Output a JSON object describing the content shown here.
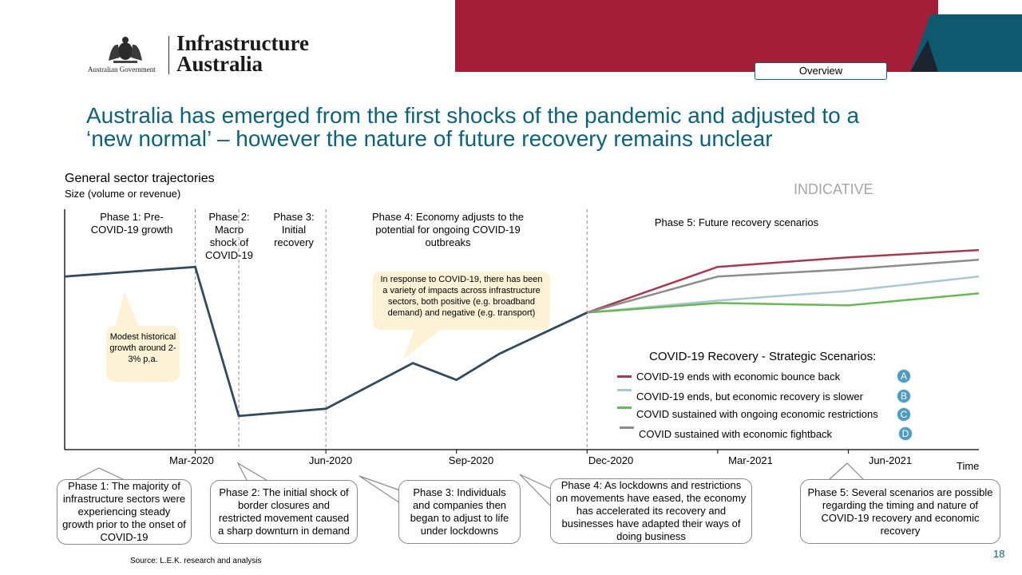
{
  "header": {
    "gov_label": "Australian Government",
    "org_line1": "Infrastructure",
    "org_line2": "Australia",
    "nav_button": "Overview"
  },
  "title_line1": "Australia has emerged from the first shocks of the pandemic and adjusted to a",
  "title_line2": "‘new normal’ – however the nature of future recovery remains unclear",
  "indicative": "INDICATIVE",
  "colors": {
    "accent_red": "#a51e38",
    "accent_teal": "#0e6279",
    "line_dark": "#324a5e"
  },
  "chart_data": {
    "type": "line",
    "title": "General sector trajectories",
    "ylabel": "Size (volume or revenue)",
    "xlabel": "Time",
    "x_ticks": [
      "Mar-2020",
      "Jun-2020",
      "Sep-2020",
      "Dec-2020",
      "Mar-2021",
      "Jun-2021"
    ],
    "phases": [
      {
        "label": "Phase 1: Pre-COVID-19 growth"
      },
      {
        "label": "Phase 2: Macro shock of COVID-19"
      },
      {
        "label": "Phase 3: Initial recovery"
      },
      {
        "label": "Phase 4: Economy adjusts to the potential for ongoing COVID-19 outbreaks"
      },
      {
        "label": "Phase 5: Future recovery scenarios"
      }
    ],
    "historical": {
      "x": [
        "Dec-2019",
        "Mar-2020",
        "Apr-2020",
        "Jun-2020",
        "Aug-2020",
        "Sep-2020",
        "Oct-2020",
        "Dec-2020"
      ],
      "y": [
        72,
        76,
        14,
        17,
        36,
        29,
        40,
        57
      ]
    },
    "scenario_x": [
      "Dec-2020",
      "Mar-2021",
      "Jun-2021",
      "Sep-2021"
    ],
    "series": [
      {
        "name": "COVID-19 ends with economic bounce back",
        "badge": "A",
        "color": "#a33a52",
        "values": [
          57,
          76,
          80,
          83
        ]
      },
      {
        "name": "COVID-19 ends, but economic recovery is slower",
        "badge": "B",
        "color": "#a9c8d2",
        "values": [
          57,
          62,
          66,
          72
        ]
      },
      {
        "name": "COVID sustained with ongoing economic restrictions",
        "badge": "C",
        "color": "#6db55a",
        "values": [
          57,
          61,
          60,
          65
        ]
      },
      {
        "name": "COVID sustained with economic fightback",
        "badge": "D",
        "color": "#8c8c8c",
        "values": [
          57,
          72,
          75,
          79
        ]
      }
    ],
    "legend_title": "COVID-19 Recovery - Strategic Scenarios:",
    "callouts": [
      "Modest historical growth around 2-3% p.a.",
      "In response to COVID-19, there has been a variety of impacts across infrastructure sectors, both positive (e.g. broadband demand) and negative (e.g. transport)"
    ]
  },
  "phase_notes": [
    "Phase 1: The majority of infrastructure sectors were experiencing steady growth prior to the onset of COVID-19",
    "Phase 2: The initial shock  of border closures and restricted movement caused a sharp downturn in demand",
    "Phase 3: Individuals and companies then began to adjust to life under lockdowns",
    "Phase 4: As lockdowns and restrictions on movements have eased, the economy has accelerated its recovery and businesses have adapted their ways of doing business",
    "Phase 5: Several scenarios are possible regarding the timing and nature of COVID-19 recovery and economic recovery"
  ],
  "source": "Source:  L.E.K. research and analysis",
  "page_number": "18"
}
